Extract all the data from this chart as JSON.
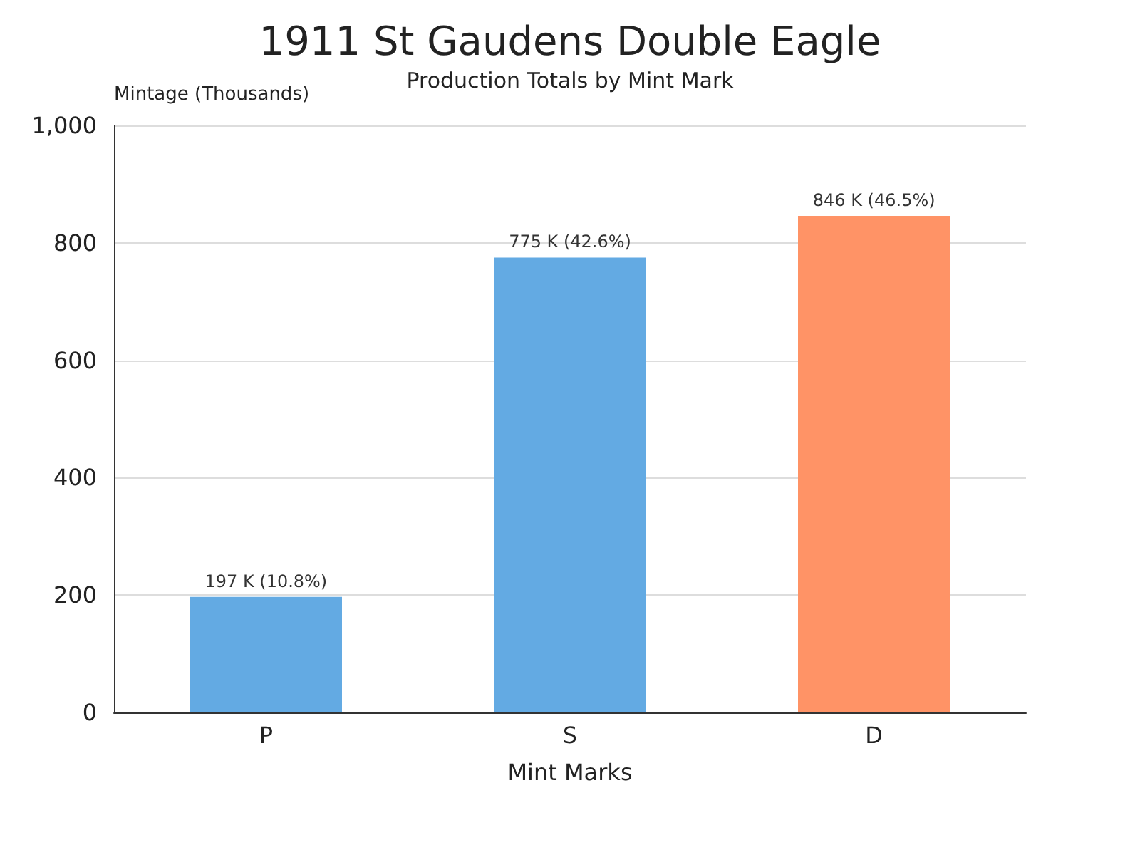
{
  "chart_data": {
    "type": "bar",
    "title": "1911 St Gaudens Double Eagle",
    "subtitle": "Production Totals by Mint Mark",
    "xlabel": "Mint Marks",
    "ylabel": "Mintage (Thousands)",
    "categories": [
      "P",
      "S",
      "D"
    ],
    "values": [
      197,
      775,
      846
    ],
    "colors": [
      "#63aae3",
      "#63aae3",
      "#ff9366"
    ],
    "value_labels": [
      "197 K (10.8%)",
      "775 K (42.6%)",
      "846 K (46.5%)"
    ],
    "ylim": [
      0,
      1000
    ],
    "yticks": [
      0,
      200,
      400,
      600,
      800,
      {
        "value": 1000,
        "label": "1,000"
      }
    ],
    "grid": "y"
  }
}
